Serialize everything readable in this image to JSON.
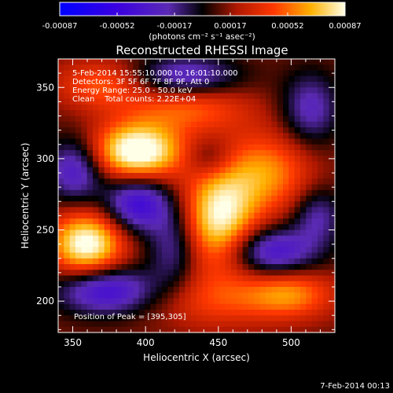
{
  "chart_data": {
    "type": "heatmap",
    "title": "Reconstructed RHESSI Image",
    "xlabel": "Heliocentric X (arcsec)",
    "ylabel": "Heliocentric Y (arcsec)",
    "xlim": [
      340,
      530
    ],
    "ylim": [
      178,
      370
    ],
    "x_ticks": [
      350,
      400,
      450,
      500
    ],
    "y_ticks": [
      200,
      250,
      300,
      350
    ],
    "colorbar": {
      "range": [
        -0.00087,
        0.00087
      ],
      "tick_labels": [
        "-0.00087",
        "-0.00052",
        "-0.00017",
        "0.00017",
        "0.00052",
        "0.00087"
      ],
      "units": "(photons cm⁻² s⁻¹ asec⁻²)"
    },
    "annotations": [
      "5-Feb-2014 15:55:10.000 to 16:01:10.000",
      "Detectors: 3F 5F 6F 7F 8F 9F, Att 0",
      "Energy Range: 25.0 - 50.0 keV",
      "Clean    Total counts: 2.22E+04"
    ],
    "peak_text": "Position of Peak = [395,305]",
    "peak_position": [
      395,
      305
    ],
    "components": [
      {
        "x": 395,
        "y": 305,
        "amp": 0.00087,
        "sx": 22,
        "sy": 14
      },
      {
        "x": 360,
        "y": 240,
        "amp": 0.0008,
        "sx": 18,
        "sy": 16
      },
      {
        "x": 452,
        "y": 258,
        "amp": 0.00072,
        "sx": 18,
        "sy": 26
      },
      {
        "x": 485,
        "y": 290,
        "amp": 0.00045,
        "sx": 22,
        "sy": 20
      },
      {
        "x": 430,
        "y": 335,
        "amp": 0.00035,
        "sx": 30,
        "sy": 12
      },
      {
        "x": 500,
        "y": 205,
        "amp": 0.00045,
        "sx": 22,
        "sy": 12
      },
      {
        "x": 370,
        "y": 352,
        "amp": 0.00035,
        "sx": 22,
        "sy": 12
      },
      {
        "x": 448,
        "y": 200,
        "amp": 0.00025,
        "sx": 30,
        "sy": 14
      },
      {
        "x": 395,
        "y": 268,
        "amp": -0.0006,
        "sx": 16,
        "sy": 14
      },
      {
        "x": 352,
        "y": 292,
        "amp": -0.0005,
        "sx": 14,
        "sy": 16
      },
      {
        "x": 373,
        "y": 208,
        "amp": -0.0006,
        "sx": 24,
        "sy": 12
      },
      {
        "x": 420,
        "y": 238,
        "amp": -0.00035,
        "sx": 12,
        "sy": 20
      },
      {
        "x": 428,
        "y": 358,
        "amp": -0.00045,
        "sx": 26,
        "sy": 10
      },
      {
        "x": 488,
        "y": 235,
        "amp": -0.00055,
        "sx": 22,
        "sy": 12
      },
      {
        "x": 445,
        "y": 300,
        "amp": -0.00025,
        "sx": 12,
        "sy": 10
      },
      {
        "x": 515,
        "y": 335,
        "amp": -0.0004,
        "sx": 14,
        "sy": 18
      },
      {
        "x": 520,
        "y": 260,
        "amp": -0.00035,
        "sx": 12,
        "sy": 14
      }
    ]
  },
  "footer": {
    "date": "7-Feb-2014 00:13"
  }
}
